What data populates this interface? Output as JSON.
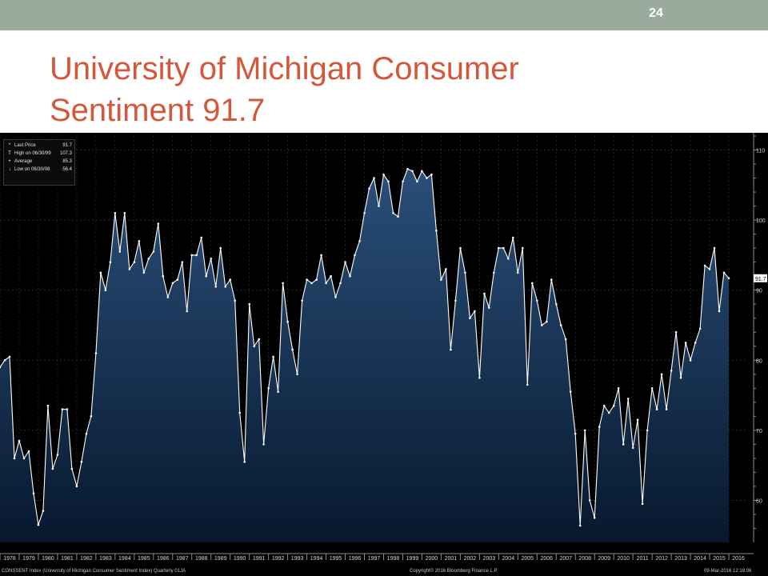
{
  "slide": {
    "number": "24",
    "title_line1": "University of Michigan Consumer",
    "title_line2": "Sentiment 91.7"
  },
  "legend": [
    {
      "symbol": "*",
      "label": "Last Price",
      "value": "91.7"
    },
    {
      "symbol": "T",
      "label": "High on 06/30/99",
      "value": "107.3"
    },
    {
      "symbol": "+",
      "label": "Average",
      "value": "85.3"
    },
    {
      "symbol": "↓",
      "label": "Low on 06/30/08",
      "value": "56.4"
    }
  ],
  "footer": {
    "left": "CONSSENT Index (University of Michigan Consumer Sentiment Index) Quarterly 01JA",
    "center": "Copyright© 2016 Bloomberg Finance L.P.",
    "right": "09-Mar-2016 12:18:06"
  },
  "colors": {
    "title": "#d4573a",
    "top_bar": "#9aab9d",
    "chart_background": "#000000",
    "area_top": "#2a4f7a",
    "area_bottom": "#07182e",
    "line": "#ffffff"
  },
  "chart_data": {
    "type": "area",
    "title": "",
    "xlabel": "",
    "ylabel": "",
    "frequency": "quarterly",
    "ylim": [
      54,
      112
    ],
    "y_ticks": [
      60,
      70,
      80,
      90,
      100,
      110
    ],
    "last_value_label": "91.7",
    "x_tick_labels": [
      "1978",
      "1979",
      "1980",
      "1981",
      "1982",
      "1983",
      "1984",
      "1985",
      "1986",
      "1987",
      "1988",
      "1989",
      "1990",
      "1991",
      "1992",
      "1993",
      "1994",
      "1995",
      "1996",
      "1997",
      "1998",
      "1999",
      "2000",
      "2001",
      "2002",
      "2003",
      "2004",
      "2005",
      "2006",
      "2007",
      "2008",
      "2009",
      "2010",
      "2011",
      "2012",
      "2013",
      "2014",
      "2015",
      "2016"
    ],
    "grid": true,
    "x_start_year": 1978,
    "series": [
      {
        "values": [
          79.0,
          80.0,
          80.5,
          66.0,
          68.5,
          66.0,
          67.0,
          61.0,
          56.5,
          58.5,
          73.5,
          64.5,
          66.5,
          73.0,
          73.0,
          64.5,
          62.0,
          65.5,
          69.5,
          72.0,
          81.0,
          92.5,
          90.0,
          94.0,
          101.0,
          95.5,
          101.0,
          93.0,
          94.0,
          97.0,
          92.5,
          94.5,
          95.5,
          99.5,
          92.0,
          89.0,
          91.0,
          91.5,
          94.0,
          87.0,
          95.0,
          95.0,
          97.5,
          92.0,
          94.5,
          90.5,
          96.0,
          90.5,
          91.5,
          88.5,
          72.5,
          65.5,
          88.0,
          82.0,
          83.0,
          68.0,
          76.0,
          80.5,
          75.5,
          91.0,
          85.5,
          81.5,
          78.0,
          88.5,
          91.5,
          91.0,
          91.5,
          95.0,
          91.0,
          92.0,
          89.0,
          91.0,
          94.0,
          92.0,
          95.0,
          97.0,
          101.0,
          104.5,
          106.0,
          102.0,
          106.5,
          105.5,
          101.0,
          100.5,
          105.5,
          107.3,
          107.0,
          105.5,
          107.0,
          106.0,
          106.5,
          98.5,
          91.5,
          93.0,
          81.5,
          88.5,
          96.0,
          92.5,
          86.0,
          87.0,
          77.5,
          89.5,
          87.5,
          92.5,
          96.0,
          96.0,
          94.5,
          97.5,
          92.5,
          96.0,
          76.5,
          91.0,
          88.5,
          85.0,
          85.5,
          91.5,
          88.0,
          85.0,
          83.0,
          75.5,
          69.5,
          56.4,
          70.0,
          60.0,
          57.5,
          70.5,
          73.5,
          72.5,
          73.5,
          76.0,
          68.0,
          74.5,
          67.5,
          71.5,
          59.5,
          70.0,
          76.0,
          73.0,
          78.0,
          73.0,
          78.5,
          84.0,
          77.5,
          82.5,
          80.0,
          82.5,
          84.5,
          93.5,
          93.0,
          96.0,
          87.0,
          92.5,
          91.7
        ]
      }
    ]
  }
}
